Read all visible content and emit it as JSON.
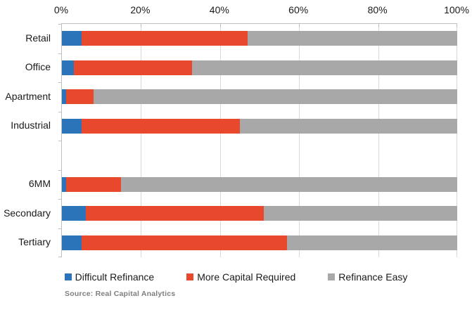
{
  "source": "Source: Real Capital Analytics",
  "colors": {
    "difficult_refinance": "#2b74b9",
    "more_capital_required": "#e8492d",
    "refinance_easy": "#a8a8a8",
    "gridline": "#d9d9d9",
    "axis_line": "#bfbfbf",
    "text": "#1a1a1a",
    "source_text": "#7f7f7f"
  },
  "chart_data": {
    "type": "bar",
    "orientation": "horizontal-stacked",
    "title": "",
    "xlabel": "",
    "ylabel": "",
    "xlim": [
      0,
      100
    ],
    "x_ticks": [
      "0%",
      "20%",
      "40%",
      "60%",
      "80%",
      "100%"
    ],
    "grid": true,
    "legend_position": "bottom",
    "categories": [
      "Retail",
      "Office",
      "Apartment",
      "Industrial",
      "",
      "6MM",
      "Secondary",
      "Tertiary"
    ],
    "series": [
      {
        "name": "Difficult Refinance",
        "color": "#2b74b9",
        "values": [
          5,
          3,
          1,
          5,
          0,
          1,
          6,
          5
        ]
      },
      {
        "name": "More Capital Required",
        "color": "#e8492d",
        "values": [
          42,
          30,
          7,
          40,
          0,
          14,
          45,
          52
        ]
      },
      {
        "name": "Refinance Easy",
        "color": "#a8a8a8",
        "values": [
          53,
          67,
          92,
          55,
          0,
          85,
          49,
          43
        ]
      }
    ]
  }
}
